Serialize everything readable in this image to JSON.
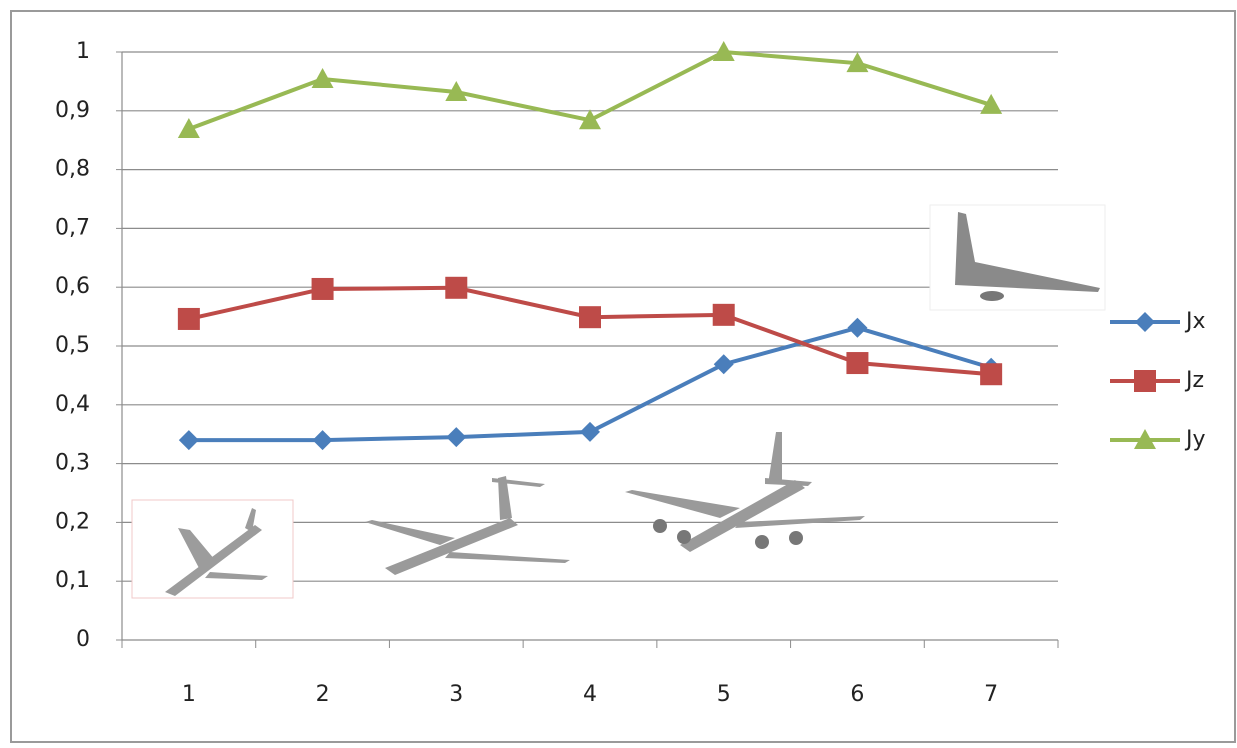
{
  "chart_data": {
    "type": "line",
    "categories": [
      "1",
      "2",
      "3",
      "4",
      "5",
      "6",
      "7"
    ],
    "series": [
      {
        "name": "Jx",
        "color": "#4a7ebb",
        "marker": "diamond",
        "values": [
          0.34,
          0.34,
          0.345,
          0.354,
          0.469,
          0.531,
          0.463
        ]
      },
      {
        "name": "Jz",
        "color": "#be4b48",
        "marker": "square",
        "values": [
          0.546,
          0.597,
          0.599,
          0.549,
          0.553,
          0.471,
          0.452
        ]
      },
      {
        "name": "Jy",
        "color": "#98b954",
        "marker": "triangle",
        "values": [
          0.869,
          0.954,
          0.932,
          0.884,
          1.0,
          0.981,
          0.91
        ]
      }
    ],
    "ylim": [
      0,
      1
    ],
    "yticks": [
      0,
      {
        "value": 0.1,
        "label": "0,1"
      },
      {
        "value": 0.2,
        "label": "0,2"
      },
      {
        "value": 0.3,
        "label": "0,3"
      },
      {
        "value": 0.4,
        "label": "0,4"
      },
      {
        "value": 0.5,
        "label": "0,5"
      },
      {
        "value": 0.6,
        "label": "0,6"
      },
      {
        "value": 0.7,
        "label": "0,7"
      },
      {
        "value": 0.8,
        "label": "0,8"
      },
      {
        "value": 0.9,
        "label": "0,9"
      },
      1
    ],
    "grid": true,
    "legend": "right"
  }
}
